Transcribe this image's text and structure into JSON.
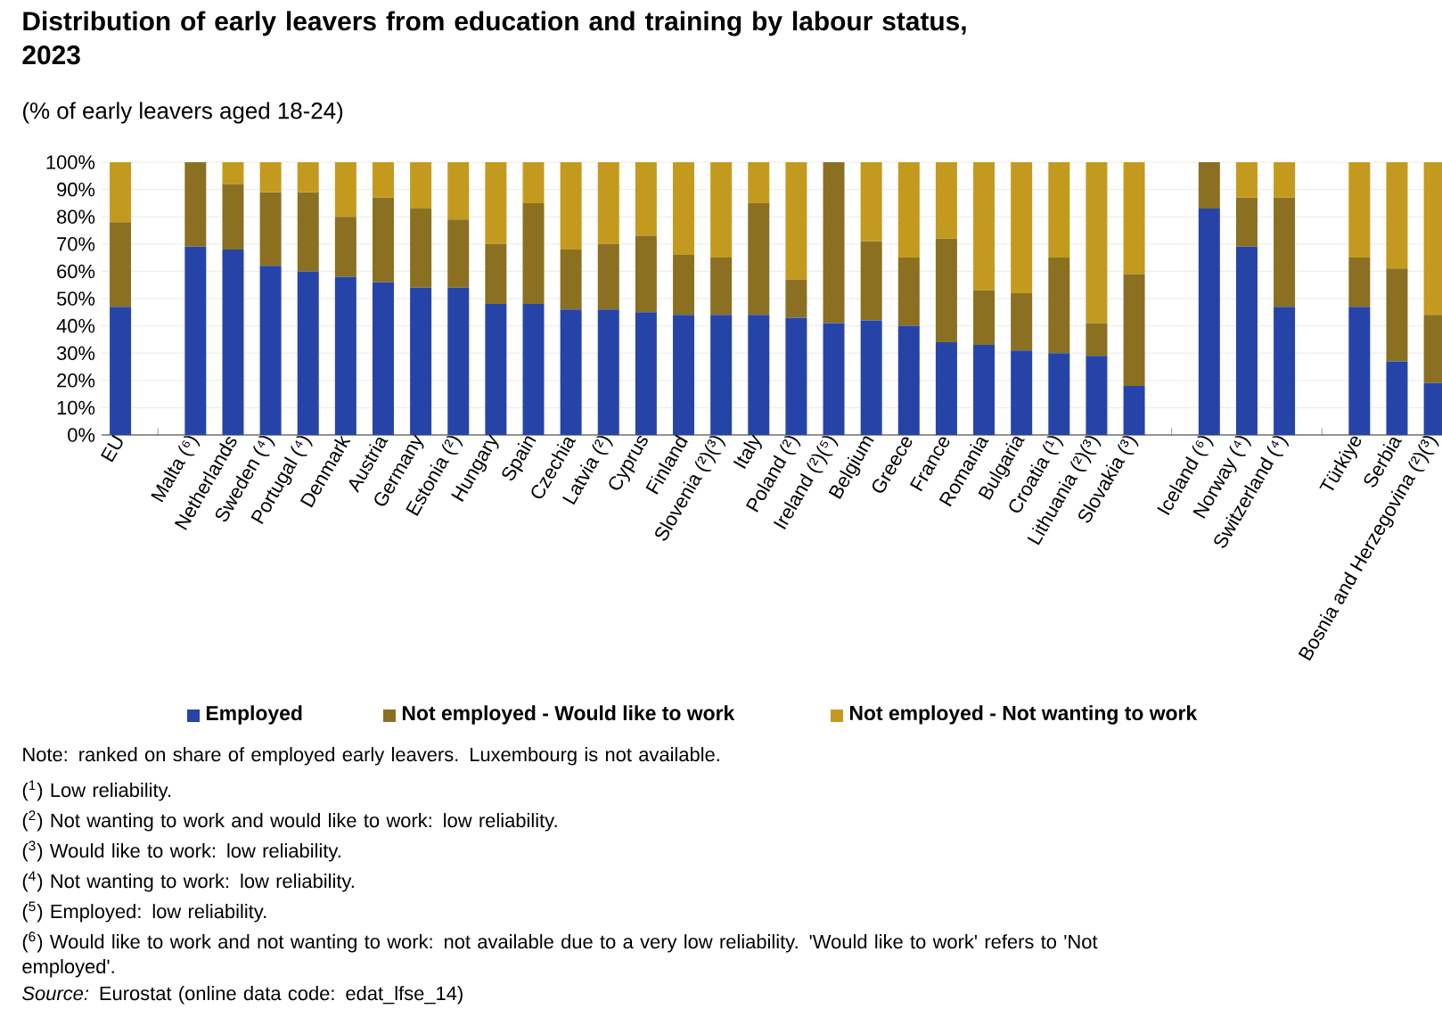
{
  "chart_data": {
    "type": "bar",
    "stacked": true,
    "title": "Distribution of early leavers from education and training by labour status, 2023",
    "subtitle": "(% of early leavers aged 18-24)",
    "categories": [
      "EU",
      null,
      "Malta (⁶)",
      "Netherlands",
      "Sweden (⁴)",
      "Portugal (⁴)",
      "Denmark",
      "Austria",
      "Germany",
      "Estonia (²)",
      "Hungary",
      "Spain",
      "Czechia",
      "Latvia (²)",
      "Cyprus",
      "Finland",
      "Slovenia (²)(³)",
      "Italy",
      "Poland (²)",
      "Ireland (²)(⁵)",
      "Belgium",
      "Greece",
      "France",
      "Romania",
      "Bulgaria",
      "Croatia (¹)",
      "Lithuania (²)(³)",
      "Slovakia (³)",
      null,
      "Iceland (⁶)",
      "Norway (⁴)",
      "Switzerland (⁴)",
      null,
      "Türkiye",
      "Serbia",
      "Bosnia and Herzegovina (²)(³)"
    ],
    "series": [
      {
        "name": "Employed",
        "color": "#2644a8",
        "values": [
          47,
          null,
          69,
          68,
          62,
          60,
          58,
          56,
          54,
          54,
          48,
          48,
          46,
          46,
          45,
          44,
          44,
          44,
          43,
          41,
          42,
          40,
          34,
          33,
          31,
          30,
          29,
          18,
          null,
          83,
          69,
          47,
          null,
          47,
          27,
          19
        ]
      },
      {
        "name": "Not employed - Would like to work",
        "color": "#8b7021",
        "values": [
          31,
          null,
          31,
          24,
          27,
          29,
          22,
          31,
          29,
          25,
          22,
          37,
          22,
          24,
          28,
          22,
          21,
          41,
          14,
          59,
          29,
          25,
          38,
          20,
          21,
          35,
          12,
          41,
          null,
          17,
          18,
          40,
          null,
          18,
          34,
          25
        ]
      },
      {
        "name": "Not employed - Not wanting to work",
        "color": "#c49a1e",
        "values": [
          22,
          null,
          null,
          8,
          11,
          11,
          20,
          13,
          17,
          21,
          30,
          15,
          32,
          30,
          27,
          34,
          35,
          15,
          43,
          null,
          29,
          35,
          28,
          47,
          48,
          35,
          59,
          41,
          null,
          null,
          13,
          13,
          null,
          35,
          39,
          56
        ]
      }
    ],
    "ylim": [
      0,
      100
    ],
    "yticks": [
      {
        "value": 0,
        "label": "0%"
      },
      {
        "value": 10,
        "label": "10%"
      },
      {
        "value": 20,
        "label": "20%"
      },
      {
        "value": 30,
        "label": "30%"
      },
      {
        "value": 40,
        "label": "40%"
      },
      {
        "value": 50,
        "label": "50%"
      },
      {
        "value": 60,
        "label": "60%"
      },
      {
        "value": 70,
        "label": "70%"
      },
      {
        "value": 80,
        "label": "80%"
      },
      {
        "value": 90,
        "label": "90%"
      },
      {
        "value": 100,
        "label": "100%"
      }
    ],
    "grid": "y",
    "legend": "bottom",
    "annotations": [
      "Note: ranked on share of employed early leavers. Luxembourg is not available.",
      "($^{1}$) Low reliability.",
      "($^{2}$) Not wanting to work and would like to work: low reliability.",
      "($^{3}$) Would like to work: low reliability.",
      "($^{4}$) Not wanting to work: low reliability.",
      "($^{5}$) Employed: low reliability.",
      "($^{6}$) Would like to work and not wanting to work: not available due to a very low reliability. 'Would like to work' refers to 'Not employed'.",
      "*Source:* Eurostat (online data code: edat_lfse_14)"
    ]
  }
}
